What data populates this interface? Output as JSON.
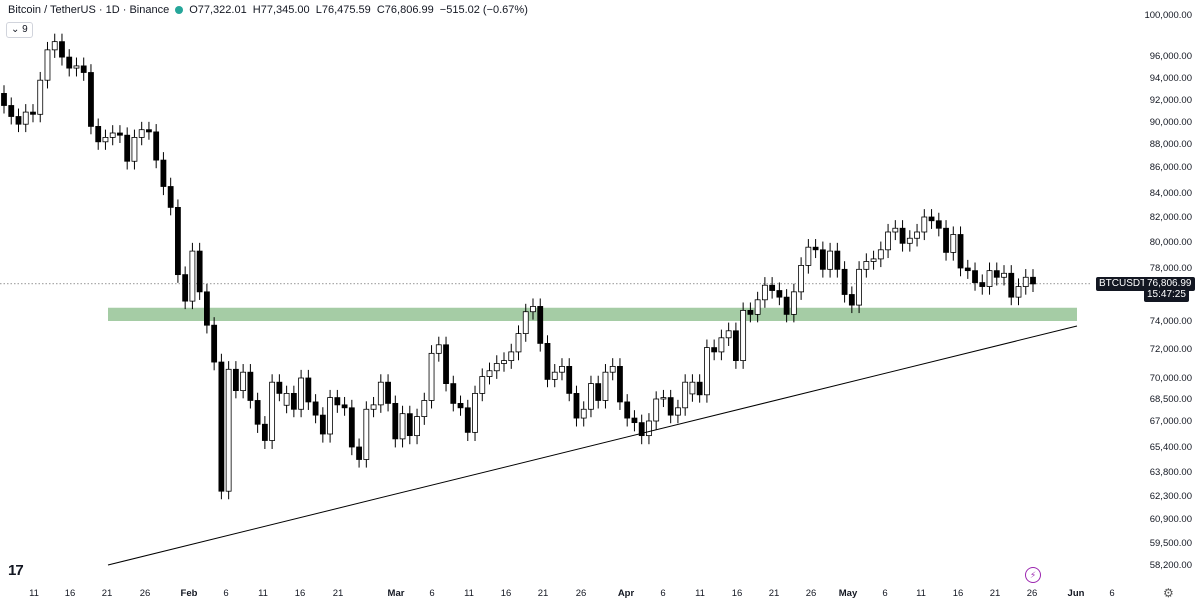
{
  "header": {
    "symbol_line": "Bitcoin / TetherUS · 1D · Binance",
    "open": "O77,322.01",
    "high": "H77,345.00",
    "low": "L76,475.59",
    "close": "C76,806.99",
    "change": "−515.02 (−0.67%)",
    "indicator_badge": "⌄ 9"
  },
  "price_labels": {
    "symbol": "BTCUSDT",
    "price": "76,806.99",
    "countdown": "15:47:25"
  },
  "logo": "17",
  "colors": {
    "up": "#ffffff",
    "down": "#000000",
    "zone": "#a5cca5",
    "line": "#000000",
    "grid_text": "#131722"
  },
  "chart_data": {
    "type": "candlestick",
    "title": "Bitcoin / TetherUS · 1D · Binance",
    "ylim": [
      58000,
      100800
    ],
    "y_ticks": [
      "100,000.00",
      "96,000.00",
      "94,000.00",
      "92,000.00",
      "90,000.00",
      "88,000.00",
      "86,000.00",
      "84,000.00",
      "82,000.00",
      "80,000.00",
      "78,000.00",
      "74,000.00",
      "72,000.00",
      "70,000.00",
      "68,500.00",
      "67,000.00",
      "65,400.00",
      "63,800.00",
      "62,300.00",
      "60,900.00",
      "59,500.00",
      "58,200.00"
    ],
    "x_ticks": [
      "11",
      "16",
      "21",
      "26",
      "Feb",
      "6",
      "11",
      "16",
      "21",
      "Mar",
      "6",
      "11",
      "16",
      "21",
      "26",
      "Apr",
      "6",
      "11",
      "16",
      "21",
      "26",
      "May",
      "6",
      "11",
      "16",
      "21",
      "26",
      "Jun",
      "6"
    ],
    "current_price": 76806.99,
    "support_zone": [
      74000,
      75000
    ],
    "trendline": {
      "start": {
        "date": "Jan 21",
        "price": 58300
      },
      "end": {
        "date": "Jun 6",
        "price": 73500
      }
    },
    "closes": [
      91500,
      90500,
      89800,
      90900,
      90700,
      93800,
      96600,
      97400,
      95900,
      94900,
      95100,
      94500,
      89600,
      88200,
      88600,
      89000,
      88800,
      86500,
      88600,
      89300,
      89100,
      86600,
      84500,
      82800,
      77500,
      75500,
      79300,
      76200,
      73700,
      71100,
      62600,
      70600,
      69100,
      70400,
      68400,
      66800,
      65800,
      69700,
      68900,
      68900,
      67800,
      70000,
      68300,
      67400,
      66200,
      68600,
      68100,
      67900,
      65400,
      64600,
      67800,
      68100,
      69700,
      68200,
      65900,
      67500,
      66100,
      67300,
      68400,
      71700,
      72300,
      69600,
      68200,
      67900,
      66300,
      68900,
      70100,
      70500,
      71000,
      71200,
      71800,
      73100,
      74700,
      75100,
      72400,
      69900,
      70400,
      70800,
      68900,
      67200,
      67800,
      69600,
      68400,
      70400,
      70800,
      68300,
      67200,
      66900,
      66100,
      67000,
      68500,
      68600,
      67400,
      67900,
      69700,
      69700,
      68800,
      72100,
      71800,
      72800,
      73300,
      71200,
      74800,
      74500,
      75600,
      76700,
      76300,
      75800,
      74500,
      76200,
      78200,
      79600,
      79400,
      77900,
      79300,
      77900,
      76000,
      75200,
      77900,
      78500,
      78700,
      79400,
      80800,
      81100,
      79900,
      80300,
      80800,
      82000,
      81700,
      81100,
      79200,
      80600,
      78000,
      77800,
      76900,
      76600,
      77800,
      77300,
      77600,
      75800,
      76600,
      77300,
      76800
    ],
    "gains": [
      0,
      0,
      0,
      1,
      0,
      1,
      1,
      1,
      0,
      0,
      1,
      0,
      0,
      0,
      1,
      1,
      0,
      0,
      1,
      1,
      0,
      0,
      0,
      0,
      0,
      0,
      1,
      0,
      0,
      0,
      0,
      1,
      0,
      1,
      0,
      0,
      0,
      1,
      0,
      1,
      0,
      1,
      0,
      0,
      0,
      1,
      0,
      0,
      0,
      0,
      1,
      1,
      1,
      0,
      0,
      1,
      0,
      1,
      1,
      1,
      1,
      0,
      0,
      0,
      0,
      1,
      1,
      1,
      1,
      1,
      1,
      1,
      1,
      1,
      0,
      0,
      1,
      1,
      0,
      0,
      1,
      1,
      0,
      1,
      1,
      0,
      0,
      0,
      0,
      1,
      1,
      1,
      0,
      1,
      1,
      1,
      0,
      1,
      0,
      1,
      1,
      0,
      1,
      0,
      1,
      1,
      0,
      0,
      0,
      1,
      1,
      1,
      0,
      0,
      1,
      0,
      0,
      0,
      1,
      1,
      1,
      1,
      1,
      1,
      0,
      1,
      1,
      1,
      0,
      0,
      0,
      1,
      0,
      0,
      0,
      0,
      1,
      0,
      1,
      0,
      1,
      1,
      0
    ]
  }
}
